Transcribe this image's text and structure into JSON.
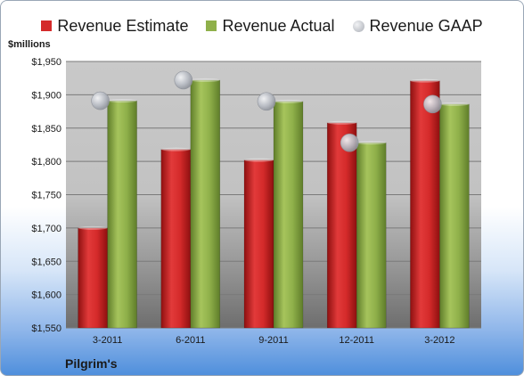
{
  "chart_data": {
    "type": "bar",
    "title": "Pilgrim's",
    "ylabel": "$millions",
    "categories": [
      "3-2011",
      "6-2011",
      "9-2011",
      "12-2011",
      "3-2012"
    ],
    "series": [
      {
        "name": "Revenue Estimate",
        "kind": "bar",
        "color": "#d42a2a",
        "values": [
          1700,
          1818,
          1802,
          1858,
          1921
        ]
      },
      {
        "name": "Revenue Actual",
        "kind": "bar",
        "color": "#8fb04a",
        "values": [
          1891,
          1922,
          1890,
          1828,
          1886
        ]
      },
      {
        "name": "Revenue GAAP",
        "kind": "marker",
        "color": "#b8bcc4",
        "values": [
          1891,
          1922,
          1890,
          1828,
          1886
        ]
      }
    ],
    "yticks": [
      "$1,550",
      "$1,600",
      "$1,650",
      "$1,700",
      "$1,750",
      "$1,800",
      "$1,850",
      "$1,900",
      "$1,950"
    ],
    "ylim": [
      1550,
      1950
    ],
    "grid": true,
    "legend": "top"
  }
}
